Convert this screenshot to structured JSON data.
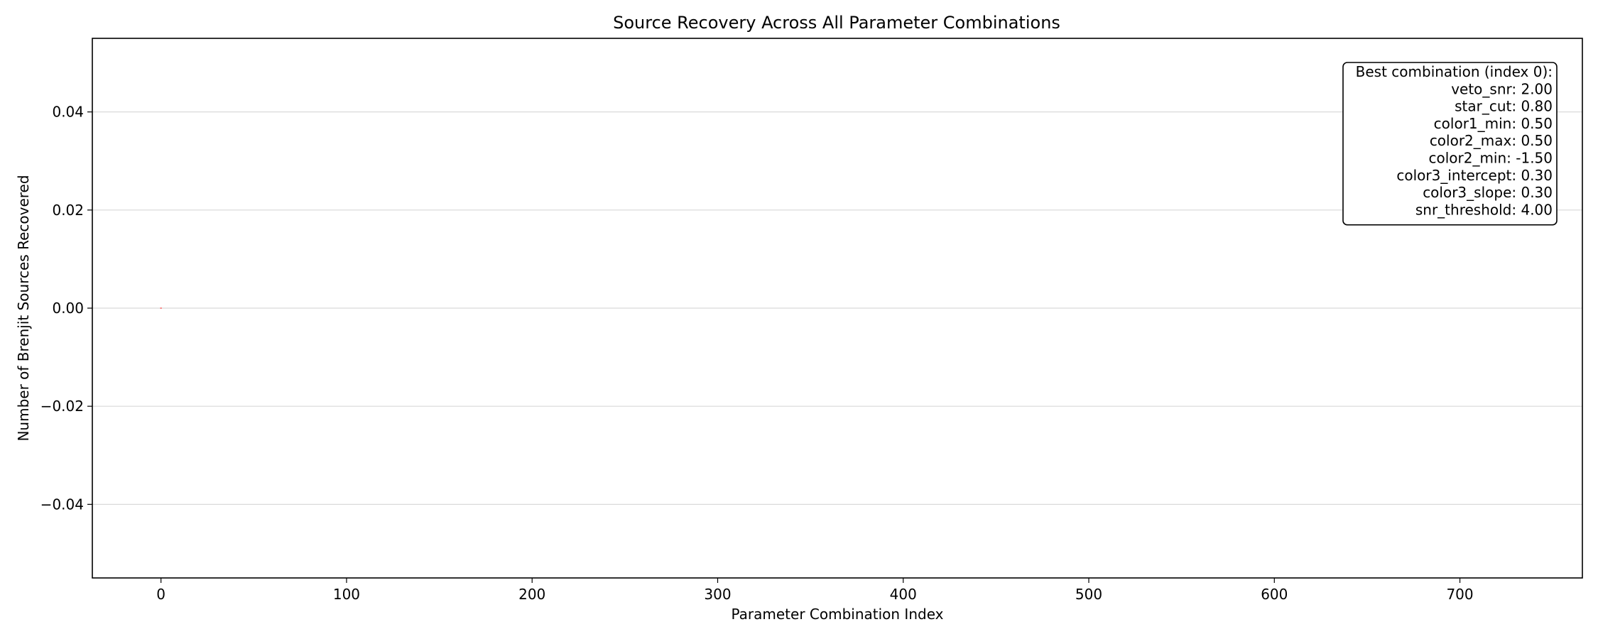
{
  "chart_data": {
    "type": "bar",
    "title": "Source Recovery Across All Parameter Combinations",
    "xlabel": "Parameter Combination Index",
    "ylabel": "Number of Brenjit Sources Recovered",
    "xlim": [
      -37,
      766
    ],
    "ylim": [
      -0.055,
      0.055
    ],
    "x_ticks": [
      0,
      100,
      200,
      300,
      400,
      500,
      600,
      700
    ],
    "x_tick_labels": [
      "0",
      "100",
      "200",
      "300",
      "400",
      "500",
      "600",
      "700"
    ],
    "y_ticks": [
      -0.04,
      -0.02,
      0.0,
      0.02,
      0.04
    ],
    "y_tick_labels": [
      "−0.04",
      "−0.02",
      "0.00",
      "0.02",
      "0.04"
    ],
    "grid": "horizontal",
    "x": [
      0
    ],
    "values": [
      0
    ],
    "highlight_index": 0,
    "colors": {
      "bar": "#ff0000",
      "grid": "#d9d9d9",
      "axes": "#000000"
    },
    "annotation": {
      "placement": "top-right",
      "lines": [
        "Best combination (index 0):",
        "veto_snr: 2.00",
        "star_cut: 0.80",
        "color1_min: 0.50",
        "color2_max: 0.50",
        "color2_min: -1.50",
        "color3_intercept: 0.30",
        "color3_slope: 0.30",
        "snr_threshold: 4.00"
      ]
    }
  }
}
